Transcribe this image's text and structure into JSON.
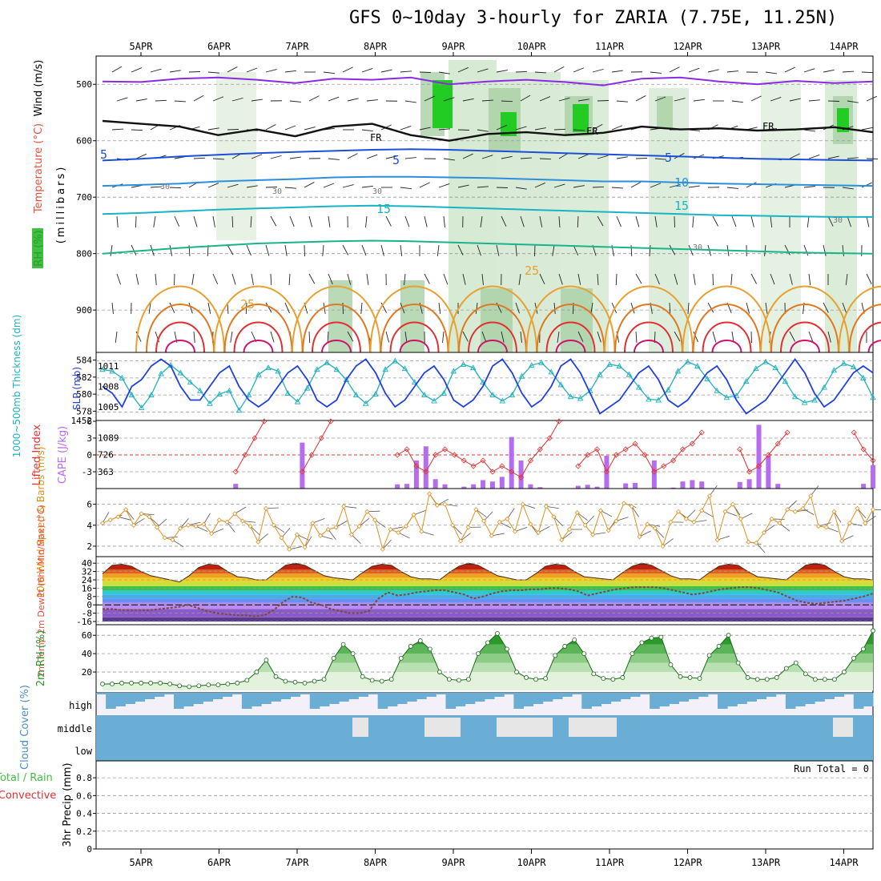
{
  "title": "GFS 0~10day 3-hourly for ZARIA (7.75E, 11.25N)",
  "colors": {
    "wind_label": "#000000",
    "temperature_label": "#e8503a",
    "rh_label": "#2a9a2a",
    "thickness_label": "#20b0c0",
    "slp_label": "#2040e0",
    "lifted_index": "#e03030",
    "cape": "#b56df0",
    "wind10m": "#e09020",
    "rh2m": "#2a9a2a",
    "cloud": "#6aaed6",
    "precip_total": "#40c040",
    "precip_conv": "#e03030"
  },
  "chart_data": {
    "type": "meteogram",
    "x_labels": [
      "5APR",
      "6APR",
      "7APR",
      "8APR",
      "9APR",
      "10APR",
      "11APR",
      "12APR",
      "13APR",
      "14APR"
    ],
    "panels": {
      "upper_air": {
        "labels": {
          "wind": "Wind (m/s)",
          "temp": "Temperature (°C)",
          "rh": "RH (%)",
          "mb": "(millibars)"
        },
        "y_ticks": [
          "500",
          "600",
          "700",
          "800",
          "900"
        ],
        "y_range_mb": [
          450,
          975
        ],
        "isotherm_labels": [
          "5",
          "5",
          "5",
          "10",
          "15",
          "15",
          "25",
          "25"
        ],
        "freezing_labels": [
          "FR",
          "FR",
          "FR"
        ],
        "rh_contour_labels": [
          "30",
          "30",
          "30",
          "30",
          "30"
        ],
        "isotherms_mb": [
          {
            "temp": -15,
            "color": "#8a2be2",
            "mb": [
              495,
              496,
              490,
              488,
              492,
              498,
              490,
              492,
              488,
              500,
              495,
              492,
              496,
              502,
              490,
              488,
              495,
              500,
              494,
              498,
              495
            ]
          },
          {
            "temp": 0,
            "color": "#111111",
            "mb": [
              565,
              570,
              575,
              590,
              580,
              592,
              575,
              570,
              590,
              600,
              588,
              585,
              590,
              586,
              575,
              580,
              578,
              582,
              580,
              576,
              585
            ]
          },
          {
            "temp": 5,
            "color": "#1c4fd8",
            "mb": [
              635,
              632,
              628,
              625,
              622,
              620,
              618,
              616,
              615,
              616,
              618,
              620,
              622,
              624,
              626,
              628,
              630,
              632,
              633,
              634,
              635
            ]
          },
          {
            "temp": 10,
            "color": "#2a8fdc",
            "mb": [
              680,
              678,
              676,
              672,
              670,
              668,
              665,
              664,
              664,
              665,
              666,
              668,
              670,
              672,
              672,
              674,
              676,
              677,
              678,
              679,
              680
            ]
          },
          {
            "temp": 15,
            "color": "#18b4c4",
            "mb": [
              730,
              728,
              725,
              722,
              720,
              718,
              716,
              715,
              716,
              718,
              720,
              722,
              724,
              726,
              728,
              730,
              732,
              733,
              734,
              735,
              735
            ]
          },
          {
            "temp": 20,
            "color": "#1ab48a",
            "mb": [
              800,
              795,
              790,
              786,
              782,
              780,
              778,
              777,
              778,
              780,
              782,
              784,
              786,
              788,
              790,
              792,
              794,
              796,
              798,
              799,
              800
            ]
          }
        ]
      },
      "thickness_slp": {
        "label_thickness": "1000~500mb Thickness (dm)",
        "label_slp": "SLP (mb)",
        "left_ticks": [
          "584",
          "582",
          "580",
          "578"
        ],
        "right_ticks": [
          "1011",
          "1008",
          "1005"
        ],
        "bottom_left_tick": "1452",
        "thickness_dm": [
          583,
          582.8,
          582,
          580,
          578.5,
          580,
          582.5,
          583.5,
          582.6,
          581.5,
          580.5,
          579,
          580.1,
          580.5,
          578.2,
          580,
          582.4,
          583.2,
          582.8,
          580.2,
          579.2,
          580.8,
          583,
          583.8,
          583,
          581.8,
          580,
          579,
          580.1,
          583,
          584,
          583.1,
          581.5,
          580,
          579.3,
          580.2,
          582.8,
          583.6,
          583.2,
          581.5,
          580,
          579.3,
          580,
          582.2,
          583.5,
          583.8,
          582.7,
          581.2,
          579.8,
          579.6,
          580.5,
          582.4,
          583.6,
          583.4,
          582.4,
          580.9,
          579.5,
          579.4,
          580.6,
          582.8,
          583.9,
          583.4,
          581.9,
          580.5,
          579.7,
          579.9,
          581.6,
          583.1,
          583.9,
          583.2,
          581.6,
          579.8,
          579.1,
          579.4,
          580.9,
          582.9,
          583.7,
          583.3,
          582,
          579.7
        ],
        "slp_mb": [
          1008,
          1007,
          1005,
          1008,
          1009,
          1011,
          1012,
          1011,
          1008,
          1006,
          1006,
          1008,
          1010,
          1011,
          1008,
          1006,
          1005,
          1006,
          1008,
          1010,
          1011,
          1009,
          1006,
          1005,
          1006,
          1009,
          1011,
          1012,
          1010,
          1007,
          1005,
          1006,
          1008,
          1010,
          1011,
          1009,
          1006,
          1005,
          1006,
          1008,
          1011,
          1012,
          1010,
          1007,
          1005,
          1006,
          1008,
          1011,
          1012,
          1010,
          1007,
          1004,
          1005,
          1006,
          1008,
          1010,
          1011,
          1009,
          1006,
          1005,
          1006,
          1008,
          1010,
          1011,
          1009,
          1006,
          1004,
          1005,
          1006,
          1008,
          1010,
          1012,
          1010,
          1007,
          1005,
          1006,
          1008,
          1010,
          1011,
          1010
        ]
      },
      "cape_li": {
        "label_li": "Lifted Index",
        "label_cape": "CAPE (J/kg)",
        "left_ticks": [
          "-3",
          "0",
          "3",
          "6"
        ],
        "right_ticks": [
          "1089",
          "726",
          "363"
        ],
        "li": [
          9,
          9,
          9,
          9,
          9,
          9,
          9,
          9,
          9,
          9,
          9,
          9,
          9,
          9,
          -3,
          0,
          3,
          6,
          9,
          9,
          9,
          -3,
          0,
          3,
          6,
          9,
          9,
          9,
          9,
          9,
          9,
          0,
          1,
          -2,
          -3,
          0,
          1,
          0,
          -1,
          -2,
          -1,
          -3,
          -2,
          -3,
          -4,
          -1,
          1,
          3,
          6,
          9,
          -2,
          0,
          1,
          -3,
          0,
          1,
          2,
          0,
          -3,
          -2,
          -1,
          1,
          2,
          4,
          9,
          9,
          9,
          1,
          -3,
          -2,
          0,
          2,
          4,
          9,
          9,
          9,
          9,
          9,
          9,
          4,
          1,
          -1
        ],
        "cape": [
          0,
          0,
          0,
          0,
          0,
          0,
          0,
          0,
          0,
          0,
          0,
          0,
          0,
          0,
          100,
          0,
          0,
          0,
          0,
          0,
          0,
          980,
          0,
          0,
          0,
          0,
          0,
          0,
          0,
          0,
          0,
          90,
          100,
          600,
          900,
          200,
          90,
          0,
          40,
          90,
          180,
          150,
          250,
          1100,
          600,
          90,
          30,
          0,
          0,
          0,
          60,
          80,
          40,
          700,
          0,
          110,
          120,
          0,
          600,
          0,
          20,
          150,
          180,
          150,
          0,
          0,
          0,
          140,
          200,
          1360,
          700,
          100,
          0,
          0,
          0,
          0,
          0,
          0,
          0,
          0,
          100,
          500
        ]
      },
      "wind10m": {
        "label": "10m Wind Speed & Barbs (m/s)",
        "y_ticks": [
          "6",
          "4",
          "2"
        ],
        "speed": [
          4.2,
          4.5,
          4.8,
          5.5,
          4.0,
          5.1,
          4.8,
          3.8,
          2.8,
          2.6,
          3.7,
          4.0,
          3.9,
          4.1,
          3.2,
          4.5,
          4.3,
          5.1,
          4.4,
          3.9,
          2.4,
          5.6,
          4.0,
          2.8,
          1.7,
          3.1,
          1.9,
          4.2,
          3.0,
          3.6,
          3.8,
          5.8,
          3.1,
          3.9,
          5.3,
          4.5,
          1.7,
          3.6,
          3.3,
          3.9,
          5.0,
          3.4,
          7.0,
          5.9,
          6.0,
          4.0,
          2.5,
          3.8,
          5.5,
          4.4,
          3.0,
          4.3,
          4.6,
          3.4,
          6.0,
          4.1,
          3.3,
          5.8,
          4.8,
          2.6,
          3.6,
          5.2,
          4.0,
          3.1,
          5.4,
          3.5,
          4.4,
          6.1,
          5.8,
          2.9,
          4.1,
          3.7,
          2.0,
          4.3,
          5.3,
          4.6,
          4.3,
          5.4,
          6.8,
          2.6,
          5.3,
          6.0,
          4.6,
          2.4,
          2.3,
          3.3,
          4.6,
          4.2,
          5.5,
          5.3,
          5.6,
          6.8,
          3.9,
          3.8,
          5.3,
          2.5,
          4.2,
          5.6,
          4.2,
          5.5
        ]
      },
      "temp2m": {
        "label": "2m Temp 2m DewPt (6hr Min/Max) (°C)",
        "y_ticks": [
          "40",
          "32",
          "24",
          "16",
          "8",
          "0",
          "-8",
          "-16"
        ],
        "temp_max": [
          30,
          38,
          39,
          37,
          32,
          28,
          26,
          24,
          22,
          28,
          36,
          39,
          38,
          32,
          27,
          26,
          24,
          24,
          31,
          38,
          40,
          38,
          33,
          28,
          26,
          25,
          24,
          31,
          37,
          39,
          38,
          32,
          27,
          25,
          25,
          24,
          31,
          37,
          40,
          38,
          33,
          28,
          26,
          24,
          24,
          30,
          37,
          39,
          38,
          32,
          27,
          26,
          25,
          24,
          31,
          37,
          40,
          38,
          33,
          28,
          25,
          25,
          24,
          31,
          37,
          39,
          38,
          32,
          27,
          26,
          25,
          24,
          31,
          38,
          40,
          38,
          32,
          27,
          25,
          25,
          24
        ],
        "dewpoint": [
          -4,
          -4,
          -5,
          -5,
          -5,
          -5,
          -4,
          -3,
          -2,
          0,
          -3,
          -6,
          -8,
          -9,
          -10,
          -10,
          -11,
          -10,
          -5,
          3,
          8,
          7,
          2,
          0,
          -4,
          -6,
          -8,
          -8,
          -6,
          6,
          12,
          9,
          10,
          12,
          13,
          14,
          14,
          12,
          10,
          6,
          8,
          11,
          13,
          14,
          14,
          15,
          15,
          16,
          16,
          15,
          13,
          9,
          11,
          13,
          15,
          16,
          17,
          17,
          17,
          16,
          14,
          12,
          10,
          11,
          13,
          15,
          16,
          17,
          17,
          16,
          14,
          12,
          8,
          4,
          2,
          1,
          2,
          3,
          4,
          6,
          8,
          11
        ]
      },
      "rh2m": {
        "label": "2m RH (%)",
        "y_ticks": [
          "60",
          "40",
          "20"
        ],
        "values": [
          7,
          7,
          8,
          8,
          8,
          8,
          8,
          7,
          5,
          4,
          5,
          6,
          6,
          7,
          8,
          11,
          20,
          33,
          15,
          10,
          9,
          8,
          10,
          12,
          35,
          50,
          40,
          15,
          11,
          10,
          12,
          35,
          48,
          54,
          45,
          20,
          12,
          11,
          12,
          40,
          52,
          62,
          45,
          20,
          14,
          12,
          13,
          38,
          48,
          55,
          40,
          18,
          13,
          12,
          14,
          40,
          52,
          57,
          58,
          28,
          15,
          14,
          13,
          38,
          48,
          60,
          30,
          14,
          12,
          12,
          14,
          24,
          30,
          18,
          12,
          12,
          12,
          20,
          35,
          45,
          65
        ]
      },
      "cloud": {
        "label": "Cloud Cover (%)",
        "levels": [
          "high",
          "middle",
          "low"
        ]
      },
      "precip": {
        "label_total": "Total / Rain",
        "label_conv": "Convective",
        "label_axis": "3hr Precip (mm)",
        "y_ticks": [
          "0.8",
          "0.6",
          "0.4",
          "0.2",
          "0"
        ],
        "run_total": "Run Total = 0",
        "values": []
      }
    }
  }
}
